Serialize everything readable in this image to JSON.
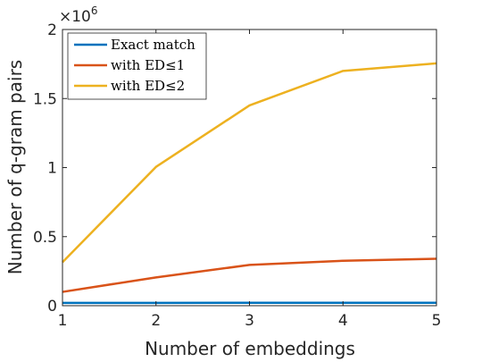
{
  "chart_data": {
    "type": "line",
    "title": "",
    "xlabel": "Number of embeddings",
    "ylabel": "Number of q-gram pairs",
    "y_exponent_prefix": "×10",
    "y_exponent_power": "6",
    "x": [
      1,
      2,
      3,
      4,
      5
    ],
    "xlim": [
      1,
      5
    ],
    "ylim": [
      0,
      2000000
    ],
    "x_ticks": [
      1,
      2,
      3,
      4,
      5
    ],
    "x_tick_labels": [
      "1",
      "2",
      "3",
      "4",
      "5"
    ],
    "y_ticks": [
      0,
      500000,
      1000000,
      1500000,
      2000000
    ],
    "y_tick_labels": [
      "0",
      "0.5",
      "1",
      "1.5",
      "2"
    ],
    "grid": false,
    "legend_position": "top-left",
    "series": [
      {
        "name": "Exact match",
        "color": "#0072BD",
        "values": [
          20000,
          20000,
          21000,
          21000,
          21000
        ]
      },
      {
        "name": "with ED≤1",
        "color": "#D95319",
        "values": [
          100000,
          205000,
          295000,
          325000,
          340000
        ]
      },
      {
        "name": "with ED≤2",
        "color": "#EDB120",
        "values": [
          315000,
          1005000,
          1450000,
          1700000,
          1755000
        ]
      }
    ]
  }
}
